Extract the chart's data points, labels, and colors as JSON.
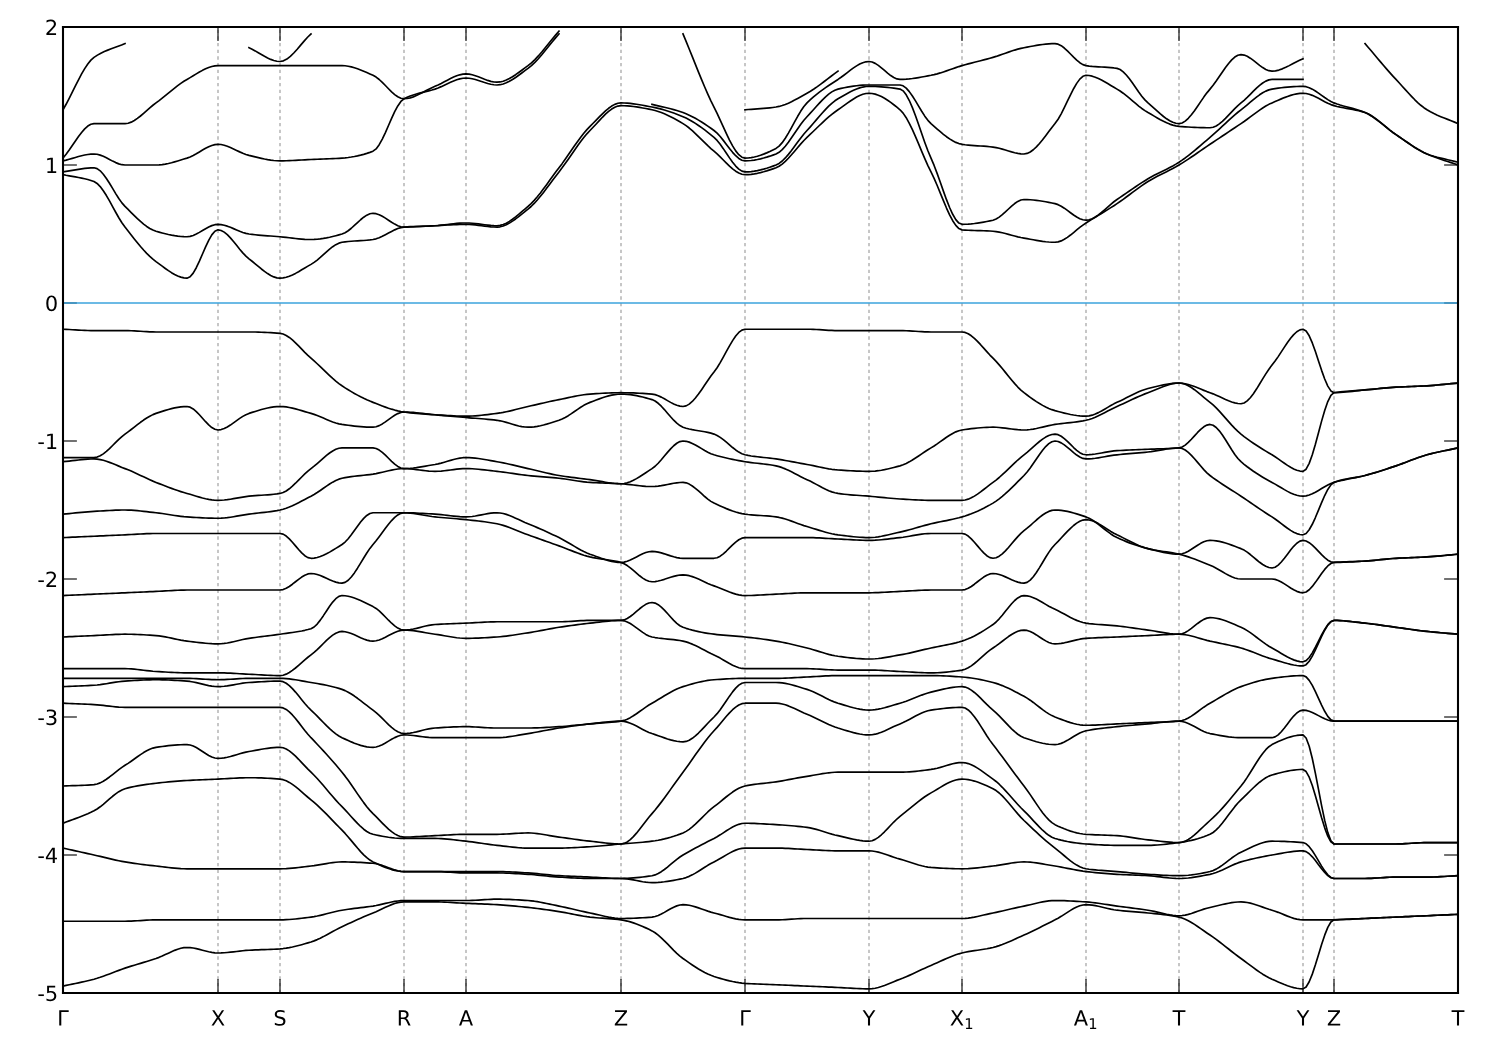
{
  "chart_data": {
    "type": "line",
    "categories": [
      "Γ",
      null,
      null,
      null,
      null,
      "X",
      null,
      "S",
      null,
      null,
      null,
      "R",
      null,
      "A",
      null,
      null,
      null,
      null,
      "Z",
      null,
      null,
      null,
      "Γ",
      null,
      null,
      null,
      "Y",
      null,
      null,
      "X$_{1}$",
      null,
      null,
      null,
      "A$_{1}$",
      null,
      null,
      "T",
      null,
      null,
      null,
      "Y",
      "Z",
      null,
      null,
      null,
      "T"
    ],
    "ylim": [
      -5,
      2
    ],
    "yticks": [
      -5,
      -4,
      -3,
      -2,
      -1,
      0,
      1,
      2
    ],
    "grid": "x",
    "legend": false,
    "line_style": "solid",
    "marker": "none",
    "ref_lines": [
      {
        "axis": "y",
        "value": 0,
        "color": "#3ba3dc"
      }
    ],
    "series": [
      {
        "color": "#000000",
        "values": [
          -4.95,
          -4.9,
          -4.82,
          -4.75,
          -4.67,
          -4.71,
          -4.69,
          -4.68,
          -4.63,
          -4.52,
          -4.42,
          -4.34,
          -4.34,
          -4.35,
          -4.36,
          -4.38,
          -4.41,
          -4.45,
          -4.47,
          -4.55,
          -4.75,
          -4.88,
          -4.93,
          -4.94,
          -4.95,
          -4.96,
          -4.97,
          -4.9,
          -4.8,
          -4.71,
          -4.67,
          -4.58,
          -4.47,
          -4.36,
          -4.4,
          -4.42,
          -4.45,
          -4.58,
          -4.75,
          -4.9,
          -4.97,
          -4.47,
          -4.46,
          -4.45,
          -4.44,
          -4.43
        ]
      },
      {
        "color": "#000000",
        "values": [
          -4.48,
          -4.48,
          -4.48,
          -4.47,
          -4.47,
          -4.47,
          -4.47,
          -4.47,
          -4.45,
          -4.4,
          -4.37,
          -4.33,
          -4.33,
          -4.33,
          -4.32,
          -4.33,
          -4.37,
          -4.42,
          -4.46,
          -4.45,
          -4.36,
          -4.42,
          -4.47,
          -4.47,
          -4.46,
          -4.46,
          -4.46,
          -4.46,
          -4.46,
          -4.46,
          -4.42,
          -4.37,
          -4.33,
          -4.34,
          -4.37,
          -4.4,
          -4.44,
          -4.38,
          -4.34,
          -4.4,
          -4.47,
          -4.47,
          -4.46,
          -4.45,
          -4.44,
          -4.43
        ]
      },
      {
        "color": "#000000",
        "values": [
          -3.95,
          -4.0,
          -4.05,
          -4.08,
          -4.1,
          -4.1,
          -4.1,
          -4.1,
          -4.08,
          -4.05,
          -4.06,
          -4.12,
          -4.12,
          -4.13,
          -4.13,
          -4.14,
          -4.16,
          -4.17,
          -4.17,
          -4.2,
          -4.17,
          -4.05,
          -3.95,
          -3.95,
          -3.96,
          -3.97,
          -3.97,
          -4.03,
          -4.09,
          -4.1,
          -4.08,
          -4.05,
          -4.08,
          -4.12,
          -4.14,
          -4.15,
          -4.17,
          -4.14,
          -4.05,
          -4.0,
          -3.97,
          -4.17,
          -4.17,
          -4.16,
          -4.16,
          -4.15
        ]
      },
      {
        "color": "#000000",
        "values": [
          -3.77,
          -3.68,
          -3.52,
          -3.48,
          -3.46,
          -3.45,
          -3.44,
          -3.45,
          -3.6,
          -3.82,
          -4.05,
          -4.12,
          -4.12,
          -4.12,
          -4.12,
          -4.13,
          -4.15,
          -4.16,
          -4.17,
          -4.15,
          -4.0,
          -3.88,
          -3.77,
          -3.78,
          -3.8,
          -3.86,
          -3.9,
          -3.72,
          -3.55,
          -3.45,
          -3.52,
          -3.75,
          -3.95,
          -4.1,
          -4.12,
          -4.14,
          -4.15,
          -4.12,
          -3.98,
          -3.9,
          -3.91,
          -4.17,
          -4.17,
          -4.16,
          -4.16,
          -4.15
        ]
      },
      {
        "color": "#000000",
        "values": [
          -3.5,
          -3.49,
          -3.35,
          -3.22,
          -3.2,
          -3.3,
          -3.25,
          -3.22,
          -3.4,
          -3.65,
          -3.85,
          -3.88,
          -3.88,
          -3.9,
          -3.93,
          -3.95,
          -3.95,
          -3.94,
          -3.92,
          -3.9,
          -3.84,
          -3.65,
          -3.5,
          -3.47,
          -3.43,
          -3.4,
          -3.4,
          -3.4,
          -3.38,
          -3.33,
          -3.45,
          -3.68,
          -3.88,
          -3.92,
          -3.93,
          -3.93,
          -3.91,
          -3.85,
          -3.6,
          -3.42,
          -3.38,
          -3.92,
          -3.92,
          -3.92,
          -3.91,
          -3.91
        ]
      },
      {
        "color": "#000000",
        "values": [
          -2.9,
          -2.91,
          -2.93,
          -2.93,
          -2.93,
          -2.93,
          -2.93,
          -2.93,
          -3.15,
          -3.4,
          -3.7,
          -3.87,
          -3.86,
          -3.85,
          -3.85,
          -3.84,
          -3.87,
          -3.9,
          -3.92,
          -3.7,
          -3.4,
          -3.1,
          -2.9,
          -2.9,
          -2.98,
          -3.08,
          -3.13,
          -3.05,
          -2.95,
          -2.93,
          -3.2,
          -3.5,
          -3.78,
          -3.85,
          -3.86,
          -3.89,
          -3.91,
          -3.75,
          -3.5,
          -3.2,
          -3.13,
          -3.92,
          -3.92,
          -3.92,
          -3.91,
          -3.91
        ]
      },
      {
        "color": "#000000",
        "values": [
          -2.78,
          -2.77,
          -2.74,
          -2.73,
          -2.74,
          -2.78,
          -2.75,
          -2.74,
          -2.95,
          -3.15,
          -3.22,
          -3.13,
          -3.15,
          -3.15,
          -3.15,
          -3.12,
          -3.08,
          -3.05,
          -3.03,
          -3.12,
          -3.18,
          -3.0,
          -2.75,
          -2.75,
          -2.8,
          -2.9,
          -2.95,
          -2.9,
          -2.82,
          -2.78,
          -2.95,
          -3.15,
          -3.2,
          -3.1,
          -3.07,
          -3.05,
          -3.03,
          -3.12,
          -3.15,
          -3.15,
          -2.95,
          -3.03,
          -3.03,
          -3.03,
          -3.03,
          -3.03
        ]
      },
      {
        "color": "#000000",
        "values": [
          -2.72,
          -2.72,
          -2.72,
          -2.72,
          -2.72,
          -2.73,
          -2.72,
          -2.72,
          -2.75,
          -2.8,
          -2.95,
          -3.12,
          -3.08,
          -3.07,
          -3.08,
          -3.08,
          -3.07,
          -3.05,
          -3.03,
          -2.9,
          -2.78,
          -2.73,
          -2.72,
          -2.72,
          -2.71,
          -2.7,
          -2.7,
          -2.7,
          -2.7,
          -2.71,
          -2.75,
          -2.85,
          -3.0,
          -3.06,
          -3.05,
          -3.04,
          -3.03,
          -2.9,
          -2.78,
          -2.72,
          -2.7,
          -3.03,
          -3.03,
          -3.03,
          -3.03,
          -3.03
        ]
      },
      {
        "color": "#000000",
        "values": [
          -2.65,
          -2.65,
          -2.65,
          -2.67,
          -2.68,
          -2.68,
          -2.69,
          -2.7,
          -2.55,
          -2.38,
          -2.45,
          -2.37,
          -2.4,
          -2.43,
          -2.42,
          -2.39,
          -2.35,
          -2.32,
          -2.3,
          -2.42,
          -2.45,
          -2.55,
          -2.65,
          -2.65,
          -2.65,
          -2.66,
          -2.66,
          -2.67,
          -2.68,
          -2.66,
          -2.5,
          -2.37,
          -2.47,
          -2.43,
          -2.42,
          -2.41,
          -2.4,
          -2.45,
          -2.5,
          -2.58,
          -2.63,
          -2.3,
          -2.32,
          -2.35,
          -2.38,
          -2.4
        ]
      },
      {
        "color": "#000000",
        "values": [
          -2.42,
          -2.41,
          -2.4,
          -2.41,
          -2.45,
          -2.47,
          -2.43,
          -2.4,
          -2.36,
          -2.12,
          -2.2,
          -2.37,
          -2.33,
          -2.32,
          -2.31,
          -2.31,
          -2.31,
          -2.3,
          -2.3,
          -2.17,
          -2.35,
          -2.4,
          -2.42,
          -2.45,
          -2.5,
          -2.56,
          -2.58,
          -2.55,
          -2.5,
          -2.45,
          -2.33,
          -2.12,
          -2.22,
          -2.32,
          -2.34,
          -2.37,
          -2.4,
          -2.28,
          -2.35,
          -2.5,
          -2.6,
          -2.3,
          -2.32,
          -2.35,
          -2.38,
          -2.4
        ]
      },
      {
        "color": "#000000",
        "values": [
          -2.12,
          -2.11,
          -2.1,
          -2.09,
          -2.08,
          -2.08,
          -2.08,
          -2.08,
          -1.96,
          -2.03,
          -1.75,
          -1.52,
          -1.55,
          -1.57,
          -1.6,
          -1.68,
          -1.76,
          -1.84,
          -1.88,
          -2.02,
          -1.97,
          -2.05,
          -2.12,
          -2.11,
          -2.1,
          -2.1,
          -2.1,
          -2.09,
          -2.08,
          -2.08,
          -1.96,
          -2.03,
          -1.75,
          -1.57,
          -1.68,
          -1.78,
          -1.82,
          -1.9,
          -2.0,
          -2.0,
          -2.1,
          -1.88,
          -1.87,
          -1.85,
          -1.84,
          -1.82
        ]
      },
      {
        "color": "#000000",
        "values": [
          -1.7,
          -1.69,
          -1.68,
          -1.67,
          -1.67,
          -1.67,
          -1.67,
          -1.67,
          -1.85,
          -1.75,
          -1.52,
          -1.52,
          -1.53,
          -1.55,
          -1.52,
          -1.6,
          -1.7,
          -1.82,
          -1.88,
          -1.8,
          -1.85,
          -1.85,
          -1.7,
          -1.7,
          -1.7,
          -1.71,
          -1.72,
          -1.7,
          -1.67,
          -1.67,
          -1.85,
          -1.65,
          -1.5,
          -1.55,
          -1.7,
          -1.78,
          -1.82,
          -1.72,
          -1.78,
          -1.92,
          -1.72,
          -1.88,
          -1.87,
          -1.85,
          -1.84,
          -1.82
        ]
      },
      {
        "color": "#000000",
        "values": [
          -1.53,
          -1.51,
          -1.5,
          -1.52,
          -1.55,
          -1.56,
          -1.53,
          -1.5,
          -1.4,
          -1.27,
          -1.24,
          -1.2,
          -1.22,
          -1.2,
          -1.22,
          -1.25,
          -1.27,
          -1.3,
          -1.31,
          -1.33,
          -1.3,
          -1.45,
          -1.53,
          -1.55,
          -1.62,
          -1.68,
          -1.7,
          -1.66,
          -1.6,
          -1.55,
          -1.45,
          -1.25,
          -1.0,
          -1.13,
          -1.1,
          -1.08,
          -1.05,
          -1.25,
          -1.4,
          -1.55,
          -1.68,
          -1.3,
          -1.25,
          -1.18,
          -1.1,
          -1.05
        ]
      },
      {
        "color": "#000000",
        "values": [
          -1.15,
          -1.13,
          -1.2,
          -1.3,
          -1.38,
          -1.43,
          -1.4,
          -1.38,
          -1.2,
          -1.05,
          -1.05,
          -1.2,
          -1.17,
          -1.12,
          -1.15,
          -1.2,
          -1.25,
          -1.28,
          -1.31,
          -1.2,
          -1.0,
          -1.1,
          -1.15,
          -1.18,
          -1.28,
          -1.38,
          -1.4,
          -1.42,
          -1.43,
          -1.43,
          -1.3,
          -1.1,
          -0.95,
          -1.1,
          -1.07,
          -1.06,
          -1.05,
          -0.88,
          -1.15,
          -1.3,
          -1.4,
          -1.3,
          -1.25,
          -1.18,
          -1.1,
          -1.05
        ]
      },
      {
        "color": "#000000",
        "values": [
          -1.12,
          -1.12,
          -0.95,
          -0.8,
          -0.75,
          -0.92,
          -0.8,
          -0.75,
          -0.8,
          -0.88,
          -0.9,
          -0.79,
          -0.81,
          -0.83,
          -0.85,
          -0.9,
          -0.85,
          -0.72,
          -0.66,
          -0.7,
          -0.9,
          -0.95,
          -1.1,
          -1.13,
          -1.17,
          -1.21,
          -1.22,
          -1.18,
          -1.05,
          -0.92,
          -0.9,
          -0.92,
          -0.88,
          -0.85,
          -0.75,
          -0.65,
          -0.58,
          -0.72,
          -0.95,
          -1.1,
          -1.22,
          -0.65,
          -0.63,
          -0.61,
          -0.6,
          -0.58
        ]
      },
      {
        "color": "#000000",
        "values": [
          -0.19,
          -0.2,
          -0.2,
          -0.21,
          -0.21,
          -0.21,
          -0.21,
          -0.22,
          -0.4,
          -0.6,
          -0.72,
          -0.79,
          -0.81,
          -0.82,
          -0.8,
          -0.75,
          -0.7,
          -0.66,
          -0.65,
          -0.66,
          -0.75,
          -0.5,
          -0.19,
          -0.19,
          -0.19,
          -0.2,
          -0.2,
          -0.2,
          -0.21,
          -0.21,
          -0.4,
          -0.65,
          -0.78,
          -0.82,
          -0.72,
          -0.62,
          -0.58,
          -0.65,
          -0.73,
          -0.45,
          -0.19,
          -0.65,
          -0.63,
          -0.61,
          -0.6,
          -0.58
        ]
      },
      {
        "color": "#000000",
        "values": [
          0.93,
          0.88,
          0.55,
          0.3,
          0.18,
          0.53,
          0.32,
          0.18,
          0.28,
          0.44,
          0.46,
          0.55,
          0.56,
          0.57,
          0.55,
          0.68,
          0.95,
          1.25,
          1.43,
          1.4,
          1.3,
          1.1,
          0.93,
          0.98,
          1.2,
          1.4,
          1.52,
          1.4,
          0.95,
          0.53,
          0.52,
          0.47,
          0.44,
          0.58,
          0.72,
          0.88,
          1.0,
          1.15,
          1.3,
          1.45,
          1.52,
          1.43,
          1.38,
          1.22,
          1.08,
          1.0
        ]
      },
      {
        "color": "#000000",
        "values": [
          0.95,
          0.98,
          0.7,
          0.52,
          0.48,
          0.57,
          0.5,
          0.48,
          0.46,
          0.5,
          0.65,
          0.55,
          0.56,
          0.58,
          0.56,
          0.7,
          0.98,
          1.28,
          1.45,
          1.42,
          1.35,
          1.2,
          0.95,
          1.0,
          1.25,
          1.48,
          1.57,
          1.55,
          1.05,
          0.57,
          0.6,
          0.75,
          0.72,
          0.6,
          0.75,
          0.9,
          1.02,
          1.2,
          1.4,
          1.55,
          1.57,
          1.45,
          1.38,
          1.22,
          1.08,
          1.02
        ]
      },
      {
        "color": "#000000",
        "values": [
          1.03,
          1.08,
          1.0,
          1.0,
          1.05,
          1.15,
          1.07,
          1.03,
          1.04,
          1.05,
          1.1,
          1.48,
          1.55,
          1.63,
          1.58,
          1.7,
          1.95,
          null,
          null,
          1.44,
          1.38,
          1.25,
          1.03,
          1.08,
          1.35,
          1.55,
          1.58,
          1.58,
          1.3,
          1.15,
          1.13,
          1.08,
          1.3,
          1.65,
          1.55,
          1.38,
          1.28,
          1.27,
          1.45,
          1.62,
          1.62,
          null,
          1.88,
          1.62,
          1.4,
          1.3
        ]
      },
      {
        "color": "#000000",
        "values": [
          1.05,
          1.3,
          1.3,
          1.45,
          1.62,
          1.72,
          1.72,
          1.72,
          1.72,
          1.72,
          1.65,
          1.48,
          1.57,
          1.66,
          1.6,
          1.72,
          1.97,
          null,
          null,
          null,
          1.95,
          1.42,
          1.05,
          1.12,
          1.45,
          1.62,
          1.75,
          1.62,
          1.65,
          1.72,
          1.78,
          1.85,
          1.88,
          1.72,
          1.7,
          1.45,
          1.3,
          1.55,
          1.8,
          1.68,
          1.77,
          null,
          null,
          null,
          null,
          null
        ]
      },
      {
        "color": "#000000",
        "values": [
          1.4,
          1.78,
          1.88,
          null,
          null,
          null,
          1.85,
          1.75,
          1.95,
          null,
          null,
          null,
          null,
          null,
          null,
          null,
          null,
          null,
          null,
          null,
          null,
          null,
          1.4,
          1.42,
          1.52,
          1.68,
          null,
          null,
          null,
          null,
          null,
          null,
          null,
          null,
          null,
          null,
          null,
          null,
          null,
          null,
          null,
          null,
          null,
          null,
          null,
          null
        ]
      }
    ]
  }
}
